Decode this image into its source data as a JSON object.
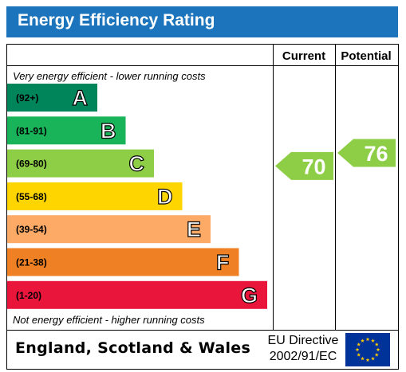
{
  "header": {
    "title": "Energy Efficiency Rating"
  },
  "columns": {
    "current": "Current",
    "potential": "Potential"
  },
  "captions": {
    "top": "Very energy efficient - lower running costs",
    "bottom": "Not energy efficient - higher running costs"
  },
  "chart_data": {
    "type": "bar",
    "title": "Energy Efficiency Rating",
    "bands": [
      {
        "letter": "A",
        "range": "(92+)",
        "color": "#00855a"
      },
      {
        "letter": "B",
        "range": "(81-91)",
        "color": "#19b459"
      },
      {
        "letter": "C",
        "range": "(69-80)",
        "color": "#8dce46"
      },
      {
        "letter": "D",
        "range": "(55-68)",
        "color": "#ffd500"
      },
      {
        "letter": "E",
        "range": "(39-54)",
        "color": "#fcaa65"
      },
      {
        "letter": "F",
        "range": "(21-38)",
        "color": "#ef8023"
      },
      {
        "letter": "G",
        "range": "(1-20)",
        "color": "#e9153b"
      }
    ],
    "current": {
      "value": 70,
      "band": "C",
      "color": "#8dce46"
    },
    "potential": {
      "value": 76,
      "band": "C",
      "color": "#8dce46"
    }
  },
  "footer": {
    "country": "England, Scotland & Wales",
    "directive_line1": "EU Directive",
    "directive_line2": "2002/91/EC"
  }
}
